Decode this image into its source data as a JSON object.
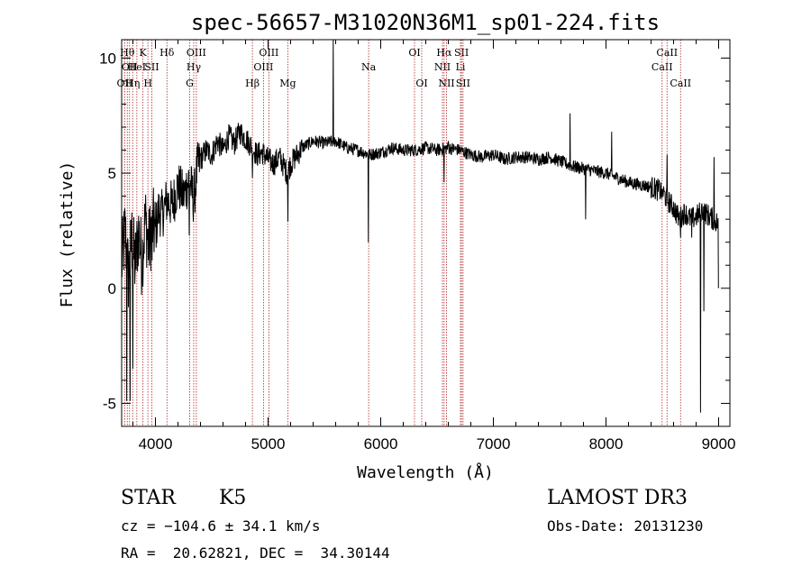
{
  "chart_data": {
    "type": "line",
    "title": "spec-56657-M31020N36M1_sp01-224.fits",
    "xlabel": "Wavelength (Å)",
    "ylabel": "Flux (relative)",
    "xlim": [
      3700,
      9100
    ],
    "ylim": [
      -6,
      10.8
    ],
    "xticks": [
      4000,
      5000,
      6000,
      7000,
      8000,
      9000
    ],
    "yticks": [
      -5,
      0,
      5,
      10
    ],
    "grid": false,
    "line_color": "#000000",
    "marker_color": "#b22222",
    "anchors": [
      [
        3700,
        1.0
      ],
      [
        3730,
        2.5
      ],
      [
        3760,
        0.5
      ],
      [
        3790,
        2.2
      ],
      [
        3820,
        1.0
      ],
      [
        3850,
        2.5
      ],
      [
        3880,
        1.2
      ],
      [
        3910,
        3.0
      ],
      [
        3940,
        1.8
      ],
      [
        3970,
        2.8
      ],
      [
        4000,
        2.5
      ],
      [
        4030,
        3.4
      ],
      [
        4060,
        3.2
      ],
      [
        4100,
        3.8
      ],
      [
        4150,
        3.6
      ],
      [
        4200,
        4.5
      ],
      [
        4250,
        4.0
      ],
      [
        4300,
        4.8
      ],
      [
        4340,
        3.8
      ],
      [
        4370,
        5.2
      ],
      [
        4400,
        5.6
      ],
      [
        4450,
        6.0
      ],
      [
        4500,
        5.8
      ],
      [
        4550,
        6.4
      ],
      [
        4600,
        6.0
      ],
      [
        4650,
        6.6
      ],
      [
        4700,
        6.3
      ],
      [
        4750,
        6.8
      ],
      [
        4800,
        6.5
      ],
      [
        4850,
        6.2
      ],
      [
        4900,
        5.8
      ],
      [
        4950,
        5.9
      ],
      [
        5000,
        5.6
      ],
      [
        5050,
        5.4
      ],
      [
        5100,
        5.7
      ],
      [
        5170,
        5.0
      ],
      [
        5200,
        5.4
      ],
      [
        5300,
        6.1
      ],
      [
        5400,
        6.4
      ],
      [
        5500,
        6.3
      ],
      [
        5600,
        6.4
      ],
      [
        5700,
        6.1
      ],
      [
        5800,
        6.0
      ],
      [
        5900,
        5.8
      ],
      [
        6000,
        5.9
      ],
      [
        6100,
        6.1
      ],
      [
        6200,
        6.0
      ],
      [
        6300,
        6.0
      ],
      [
        6400,
        6.1
      ],
      [
        6500,
        6.0
      ],
      [
        6600,
        6.1
      ],
      [
        6700,
        6.0
      ],
      [
        6800,
        5.8
      ],
      [
        6900,
        5.7
      ],
      [
        7000,
        5.8
      ],
      [
        7100,
        5.6
      ],
      [
        7200,
        5.7
      ],
      [
        7300,
        5.7
      ],
      [
        7400,
        5.6
      ],
      [
        7500,
        5.7
      ],
      [
        7600,
        5.5
      ],
      [
        7700,
        5.3
      ],
      [
        7800,
        5.2
      ],
      [
        7900,
        5.1
      ],
      [
        8000,
        5.0
      ],
      [
        8100,
        4.8
      ],
      [
        8200,
        4.6
      ],
      [
        8300,
        4.5
      ],
      [
        8400,
        4.4
      ],
      [
        8500,
        4.2
      ],
      [
        8550,
        3.8
      ],
      [
        8600,
        3.5
      ],
      [
        8650,
        3.0
      ],
      [
        8700,
        3.3
      ],
      [
        8750,
        3.0
      ],
      [
        8800,
        3.1
      ],
      [
        8850,
        3.4
      ],
      [
        8900,
        3.2
      ],
      [
        8950,
        3.0
      ],
      [
        9000,
        2.8
      ]
    ],
    "spikes": [
      [
        3745,
        -4.9
      ],
      [
        3775,
        -4.9
      ],
      [
        3800,
        -3.5
      ],
      [
        3970,
        1.2
      ],
      [
        4300,
        2.3
      ],
      [
        4861,
        4.8
      ],
      [
        5175,
        2.9
      ],
      [
        5577,
        10.8
      ],
      [
        5890,
        2.0
      ],
      [
        6563,
        4.6
      ],
      [
        6600,
        6.4
      ],
      [
        7680,
        7.6
      ],
      [
        7820,
        3.0
      ],
      [
        8050,
        6.8
      ],
      [
        8498,
        4.2
      ],
      [
        8542,
        5.8
      ],
      [
        8662,
        2.2
      ],
      [
        8760,
        2.2
      ],
      [
        8840,
        -5.4
      ],
      [
        8870,
        -1.0
      ],
      [
        8960,
        5.7
      ],
      [
        9000,
        0.0
      ]
    ],
    "lines": [
      {
        "wl": 3727,
        "rows": [
          3
        ],
        "labels": [
          "OII"
        ]
      },
      {
        "wl": 3750,
        "rows": [
          1
        ],
        "labels": [
          "Hθ"
        ]
      },
      {
        "wl": 3770,
        "rows": [
          2
        ],
        "labels": [
          "OII"
        ]
      },
      {
        "wl": 3798,
        "rows": [
          3
        ],
        "labels": [
          "Hη"
        ]
      },
      {
        "wl": 3835,
        "rows": [
          2
        ],
        "labels": [
          "HeI"
        ]
      },
      {
        "wl": 3889,
        "rows": [
          1
        ],
        "labels": [
          "K"
        ]
      },
      {
        "wl": 3933,
        "rows": [
          3
        ],
        "labels": [
          "H"
        ]
      },
      {
        "wl": 3968,
        "rows": [
          2
        ],
        "labels": [
          "SII"
        ]
      },
      {
        "wl": 4102,
        "rows": [
          1
        ],
        "labels": [
          "Hδ"
        ]
      },
      {
        "wl": 4304,
        "rows": [
          3
        ],
        "labels": [
          "G"
        ]
      },
      {
        "wl": 4340,
        "rows": [
          2
        ],
        "labels": [
          "Hγ"
        ]
      },
      {
        "wl": 4363,
        "rows": [
          1
        ],
        "labels": [
          "OIII"
        ]
      },
      {
        "wl": 4861,
        "rows": [
          3
        ],
        "labels": [
          "Hβ"
        ]
      },
      {
        "wl": 4959,
        "rows": [
          2
        ],
        "labels": [
          "OIII"
        ]
      },
      {
        "wl": 5007,
        "rows": [
          1
        ],
        "labels": [
          "OIII"
        ]
      },
      {
        "wl": 5175,
        "rows": [
          3
        ],
        "labels": [
          "Mg"
        ]
      },
      {
        "wl": 5893,
        "rows": [
          2
        ],
        "labels": [
          "Na"
        ]
      },
      {
        "wl": 6300,
        "rows": [
          1
        ],
        "labels": [
          "OI"
        ]
      },
      {
        "wl": 6364,
        "rows": [
          3
        ],
        "labels": [
          "OI"
        ]
      },
      {
        "wl": 6548,
        "rows": [
          2
        ],
        "labels": [
          "NII"
        ]
      },
      {
        "wl": 6563,
        "rows": [
          1
        ],
        "labels": [
          "Hα"
        ]
      },
      {
        "wl": 6584,
        "rows": [
          3
        ],
        "labels": [
          "NII"
        ]
      },
      {
        "wl": 6708,
        "rows": [
          2
        ],
        "labels": [
          "Li"
        ]
      },
      {
        "wl": 6717,
        "rows": [
          1
        ],
        "labels": [
          "SII"
        ]
      },
      {
        "wl": 6731,
        "rows": [
          3
        ],
        "labels": [
          "SII"
        ]
      },
      {
        "wl": 8498,
        "rows": [
          2
        ],
        "labels": [
          "CaII"
        ]
      },
      {
        "wl": 8542,
        "rows": [
          1
        ],
        "labels": [
          "CaII"
        ]
      },
      {
        "wl": 8662,
        "rows": [
          3
        ],
        "labels": [
          "CaII"
        ]
      }
    ]
  },
  "info": {
    "class": "STAR",
    "subclass": "K5",
    "survey": "LAMOST DR3",
    "cz": "cz = −104.6 ± 34.1 km/s",
    "obs_date": "Obs-Date: 20131230",
    "radec": "RA =  20.62821, DEC =  34.30144"
  }
}
